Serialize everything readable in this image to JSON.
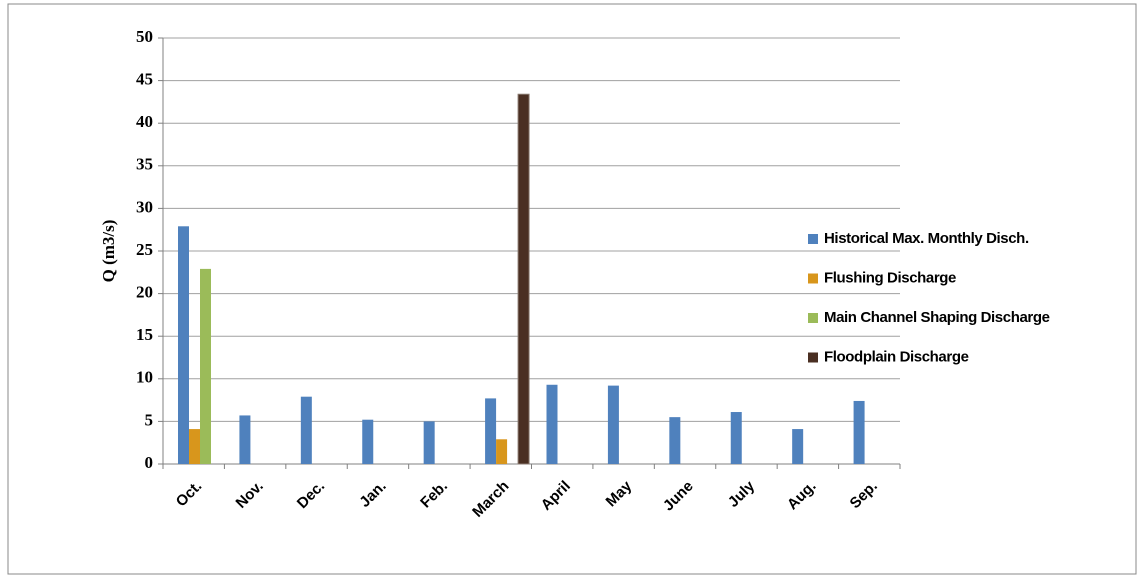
{
  "chart_data": {
    "type": "bar",
    "y_label": "Q (m3/s)",
    "categories": [
      "Oct.",
      "Nov.",
      "Dec.",
      "Jan.",
      "Feb.",
      "March",
      "April",
      "May",
      "June",
      "July",
      "Aug.",
      "Sep."
    ],
    "series": [
      {
        "name": "Historical Max. Monthly Disch.",
        "color": "#4f81bd",
        "values": [
          27.9,
          5.7,
          7.9,
          5.2,
          5.0,
          7.7,
          9.3,
          9.2,
          5.5,
          6.1,
          4.1,
          7.4
        ]
      },
      {
        "name": "Flushing Discharge",
        "color": "#d8961c",
        "values": [
          4.1,
          null,
          null,
          null,
          null,
          2.9,
          null,
          null,
          null,
          null,
          null,
          null
        ]
      },
      {
        "name": "Main Channel Shaping Discharge",
        "color": "#9bbb59",
        "values": [
          22.9,
          null,
          null,
          null,
          null,
          null,
          null,
          null,
          null,
          null,
          null,
          null
        ]
      },
      {
        "name": "Floodplain Discharge",
        "color": "#4a2f22",
        "values": [
          null,
          null,
          null,
          null,
          null,
          43.4,
          null,
          null,
          null,
          null,
          null,
          null
        ]
      }
    ],
    "ylim": [
      0,
      50
    ],
    "yticks": [
      0,
      5,
      10,
      15,
      20,
      25,
      30,
      35,
      40,
      45,
      50
    ],
    "grid": true,
    "legend": "right"
  }
}
